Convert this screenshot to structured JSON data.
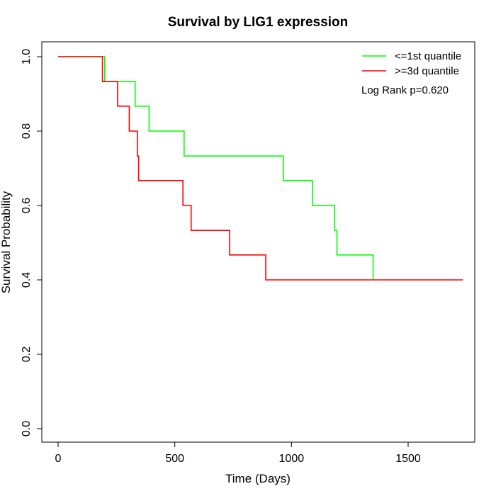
{
  "chart_data": {
    "type": "line",
    "title": "Survival by LIG1 expression",
    "xlabel": "Time (Days)",
    "ylabel": "Survival Probability",
    "xlim": [
      0,
      1750
    ],
    "ylim": [
      0,
      1
    ],
    "xticks": [
      0,
      500,
      1000,
      1500
    ],
    "yticks": [
      0.0,
      0.2,
      0.4,
      0.6,
      0.8,
      1.0
    ],
    "xtick_labels": [
      "0",
      "500",
      "1000",
      "1500"
    ],
    "ytick_labels": [
      "0.0",
      "0.2",
      "0.4",
      "0.6",
      "0.8",
      "1.0"
    ],
    "grid": false,
    "legend_position": "top-right",
    "annotation": "Log Rank p=0.620",
    "series": [
      {
        "name": "<=1st quantile",
        "color": "#00ff00",
        "step": true,
        "x": [
          0,
          200,
          330,
          390,
          540,
          965,
          1090,
          1185,
          1195,
          1350
        ],
        "y": [
          1.0,
          0.933,
          0.867,
          0.8,
          0.733,
          0.667,
          0.6,
          0.533,
          0.467,
          0.4
        ]
      },
      {
        "name": ">=3d quantile",
        "color": "#ff0000",
        "step": true,
        "x": [
          0,
          190,
          255,
          305,
          340,
          345,
          535,
          570,
          735,
          890,
          1735
        ],
        "y": [
          1.0,
          0.933,
          0.867,
          0.8,
          0.733,
          0.667,
          0.6,
          0.533,
          0.467,
          0.4,
          0.4
        ]
      }
    ]
  }
}
